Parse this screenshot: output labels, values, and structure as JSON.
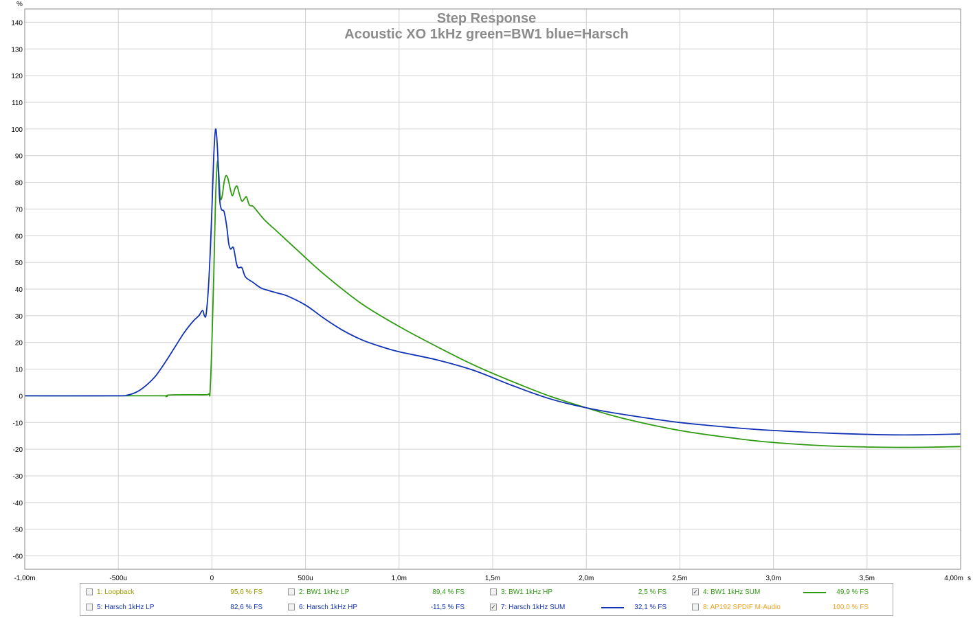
{
  "chart_data": {
    "type": "line",
    "title": "Step Response",
    "subtitle": "Acoustic XO 1kHz green=BW1 blue=Harsch",
    "ylabel": "%",
    "xunit": "s",
    "xlim": [
      -1.0,
      4.0
    ],
    "ylim": [
      -65,
      145
    ],
    "yticks": [
      140,
      130,
      120,
      110,
      100,
      90,
      80,
      70,
      60,
      50,
      40,
      30,
      20,
      10,
      0,
      -10,
      -20,
      -30,
      -40,
      -50,
      -60
    ],
    "xticks": [
      {
        "value": -1.0,
        "label": "-1,00m"
      },
      {
        "value": -0.5,
        "label": "-500u"
      },
      {
        "value": 0.0,
        "label": "0"
      },
      {
        "value": 0.5,
        "label": "500u"
      },
      {
        "value": 1.0,
        "label": "1,0m"
      },
      {
        "value": 1.5,
        "label": "1,5m"
      },
      {
        "value": 2.0,
        "label": "2,0m"
      },
      {
        "value": 2.5,
        "label": "2,5m"
      },
      {
        "value": 3.0,
        "label": "3,0m"
      },
      {
        "value": 3.5,
        "label": "3,5m"
      },
      {
        "value": 4.0,
        "label": "4,00m"
      }
    ],
    "grid": true,
    "series": [
      {
        "name": "4: BW1 1kHz SUM",
        "color": "#2e9a10",
        "points": [
          [
            -1.0,
            0
          ],
          [
            -0.5,
            0
          ],
          [
            -0.26,
            0
          ],
          [
            -0.245,
            -0.3
          ],
          [
            -0.23,
            0.3
          ],
          [
            -0.1,
            0.4
          ],
          [
            -0.03,
            0.4
          ],
          [
            -0.015,
            0.8
          ],
          [
            -0.01,
            1.5
          ],
          [
            0.0,
            20
          ],
          [
            0.01,
            45
          ],
          [
            0.02,
            75
          ],
          [
            0.03,
            88
          ],
          [
            0.038,
            82
          ],
          [
            0.045,
            74
          ],
          [
            0.055,
            75
          ],
          [
            0.065,
            80
          ],
          [
            0.075,
            82.5
          ],
          [
            0.085,
            81.5
          ],
          [
            0.1,
            77
          ],
          [
            0.11,
            75
          ],
          [
            0.125,
            78
          ],
          [
            0.135,
            78.5
          ],
          [
            0.145,
            76
          ],
          [
            0.16,
            73
          ],
          [
            0.175,
            74
          ],
          [
            0.185,
            74.5
          ],
          [
            0.2,
            71.5
          ],
          [
            0.22,
            71
          ],
          [
            0.25,
            68.5
          ],
          [
            0.28,
            66
          ],
          [
            0.31,
            64
          ],
          [
            0.35,
            61.5
          ],
          [
            0.45,
            55
          ],
          [
            0.6,
            45.5
          ],
          [
            0.8,
            34.5
          ],
          [
            1.0,
            26
          ],
          [
            1.2,
            18.5
          ],
          [
            1.4,
            11.5
          ],
          [
            1.6,
            5.5
          ],
          [
            1.8,
            0
          ],
          [
            2.0,
            -4.5
          ],
          [
            2.2,
            -8.5
          ],
          [
            2.5,
            -13
          ],
          [
            2.8,
            -16
          ],
          [
            3.0,
            -17.5
          ],
          [
            3.3,
            -18.8
          ],
          [
            3.6,
            -19.3
          ],
          [
            3.8,
            -19.3
          ],
          [
            4.0,
            -19
          ]
        ]
      },
      {
        "name": "7: Harsch 1kHz SUM",
        "color": "#1032b4",
        "points": [
          [
            -1.0,
            0
          ],
          [
            -0.52,
            0
          ],
          [
            -0.45,
            0.3
          ],
          [
            -0.4,
            1.5
          ],
          [
            -0.35,
            4
          ],
          [
            -0.3,
            7.5
          ],
          [
            -0.25,
            12.5
          ],
          [
            -0.2,
            18
          ],
          [
            -0.15,
            23.5
          ],
          [
            -0.1,
            28
          ],
          [
            -0.07,
            30
          ],
          [
            -0.05,
            32
          ],
          [
            -0.04,
            30
          ],
          [
            -0.03,
            31
          ],
          [
            -0.015,
            45
          ],
          [
            0.0,
            70
          ],
          [
            0.01,
            90
          ],
          [
            0.02,
            100
          ],
          [
            0.03,
            92
          ],
          [
            0.04,
            75
          ],
          [
            0.05,
            70
          ],
          [
            0.065,
            69
          ],
          [
            0.08,
            63
          ],
          [
            0.09,
            57
          ],
          [
            0.1,
            55
          ],
          [
            0.115,
            55.5
          ],
          [
            0.13,
            50
          ],
          [
            0.14,
            48
          ],
          [
            0.16,
            48
          ],
          [
            0.18,
            44.5
          ],
          [
            0.22,
            42.5
          ],
          [
            0.26,
            40.5
          ],
          [
            0.3,
            39.5
          ],
          [
            0.35,
            38.5
          ],
          [
            0.4,
            37.5
          ],
          [
            0.5,
            34
          ],
          [
            0.6,
            29
          ],
          [
            0.7,
            24.5
          ],
          [
            0.8,
            21
          ],
          [
            0.9,
            18.5
          ],
          [
            1.0,
            16.5
          ],
          [
            1.2,
            13.5
          ],
          [
            1.4,
            9.5
          ],
          [
            1.6,
            4
          ],
          [
            1.8,
            -1
          ],
          [
            2.0,
            -4.5
          ],
          [
            2.2,
            -7
          ],
          [
            2.5,
            -10
          ],
          [
            2.8,
            -12
          ],
          [
            3.0,
            -13
          ],
          [
            3.3,
            -14
          ],
          [
            3.6,
            -14.6
          ],
          [
            3.8,
            -14.6
          ],
          [
            4.0,
            -14.3
          ]
        ]
      }
    ]
  },
  "legend": {
    "items": [
      {
        "label": "1: Loopback",
        "value": "95,6 % FS",
        "color": "#9a9a00",
        "checked": false,
        "swatch": false
      },
      {
        "label": "2: BW1 1kHz LP",
        "value": "89,4 % FS",
        "color": "#2e9a10",
        "checked": false,
        "swatch": false
      },
      {
        "label": "3: BW1 1kHz HP",
        "value": "2,5 % FS",
        "color": "#2e9a10",
        "checked": false,
        "swatch": false
      },
      {
        "label": "4: BW1 1kHz SUM",
        "value": "49,9 % FS",
        "color": "#2e9a10",
        "checked": true,
        "swatch": true
      },
      {
        "label": "5: Harsch 1kHz LP",
        "value": "82,6 % FS",
        "color": "#1032b4",
        "checked": false,
        "swatch": false
      },
      {
        "label": "6: Harsch 1kHz HP",
        "value": "-11,5 % FS",
        "color": "#1032b4",
        "checked": false,
        "swatch": false
      },
      {
        "label": "7: Harsch 1kHz SUM",
        "value": "32,1 % FS",
        "color": "#1032b4",
        "checked": true,
        "swatch": true
      },
      {
        "label": "8: AP192 SPDIF M-Audio",
        "value": "100,0 % FS",
        "color": "#f0a020",
        "checked": false,
        "swatch": false
      }
    ]
  }
}
